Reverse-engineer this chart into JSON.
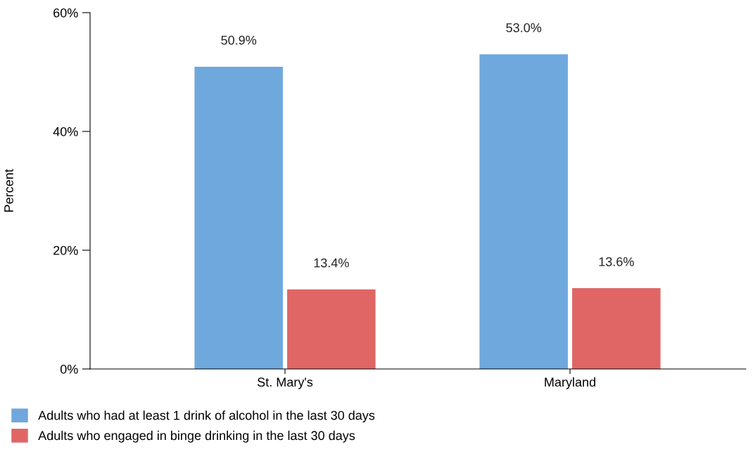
{
  "chart_data": {
    "type": "bar",
    "ylabel": "Percent",
    "categories": [
      "St. Mary's",
      "Maryland"
    ],
    "series": [
      {
        "name": "Adults who had at least 1 drink of alcohol in the last 30 days",
        "color": "#6fa8dc",
        "values": [
          50.9,
          53.0
        ],
        "value_labels": [
          "50.9%",
          "53.0%"
        ]
      },
      {
        "name": "Adults who engaged in binge drinking in the last 30 days",
        "color": "#e06666",
        "values": [
          13.4,
          13.6
        ],
        "value_labels": [
          "13.4%",
          "13.6%"
        ]
      }
    ],
    "ylim": [
      0,
      60
    ],
    "yticks": [
      {
        "value": 0,
        "label": "0%"
      },
      {
        "value": 20,
        "label": "20%"
      },
      {
        "value": 40,
        "label": "40%"
      },
      {
        "value": 60,
        "label": "60%"
      }
    ],
    "grid": false,
    "legend": "bottom"
  }
}
